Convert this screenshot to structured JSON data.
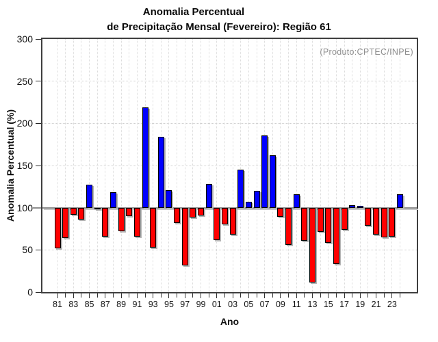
{
  "title": {
    "line1": "Anomalia Percentual",
    "line2": "de Precipitação Mensal (Fevereiro): Região 61"
  },
  "annotation": "(Produto:CPTEC/INPE)",
  "chart_data": {
    "type": "bar",
    "title": "Anomalia Percentual de Precipitação Mensal (Fevereiro): Região 61",
    "xlabel": "Ano",
    "ylabel": "Anomalia Percentual (%)",
    "ylim": [
      0,
      300
    ],
    "yticks": [
      0,
      50,
      100,
      150,
      200,
      250,
      300
    ],
    "baseline": 100,
    "grid": true,
    "legend": false,
    "categories": [
      "81",
      "82",
      "83",
      "84",
      "85",
      "86",
      "87",
      "88",
      "89",
      "90",
      "91",
      "92",
      "93",
      "94",
      "95",
      "96",
      "97",
      "98",
      "99",
      "00",
      "01",
      "02",
      "03",
      "04",
      "05",
      "06",
      "07",
      "08",
      "09",
      "10",
      "11",
      "12",
      "13",
      "14",
      "15",
      "16",
      "17",
      "18",
      "19",
      "20",
      "21",
      "22",
      "23",
      "24"
    ],
    "x_tick_labels": [
      "81",
      "83",
      "85",
      "87",
      "89",
      "91",
      "93",
      "95",
      "97",
      "99",
      "01",
      "03",
      "05",
      "07",
      "09",
      "11",
      "13",
      "15",
      "17",
      "19",
      "21",
      "23"
    ],
    "values": [
      52,
      64,
      92,
      86,
      127,
      98,
      66,
      118,
      72,
      90,
      66,
      219,
      53,
      184,
      121,
      82,
      32,
      88,
      91,
      128,
      62,
      80,
      68,
      145,
      107,
      120,
      186,
      162,
      89,
      56,
      116,
      61,
      11,
      71,
      58,
      33,
      74,
      103,
      102,
      79,
      68,
      65,
      66,
      116
    ],
    "colors": {
      "above_baseline": "#0000ff",
      "below_baseline": "#ff0000",
      "baseline_line": "#8f8f8f"
    }
  }
}
